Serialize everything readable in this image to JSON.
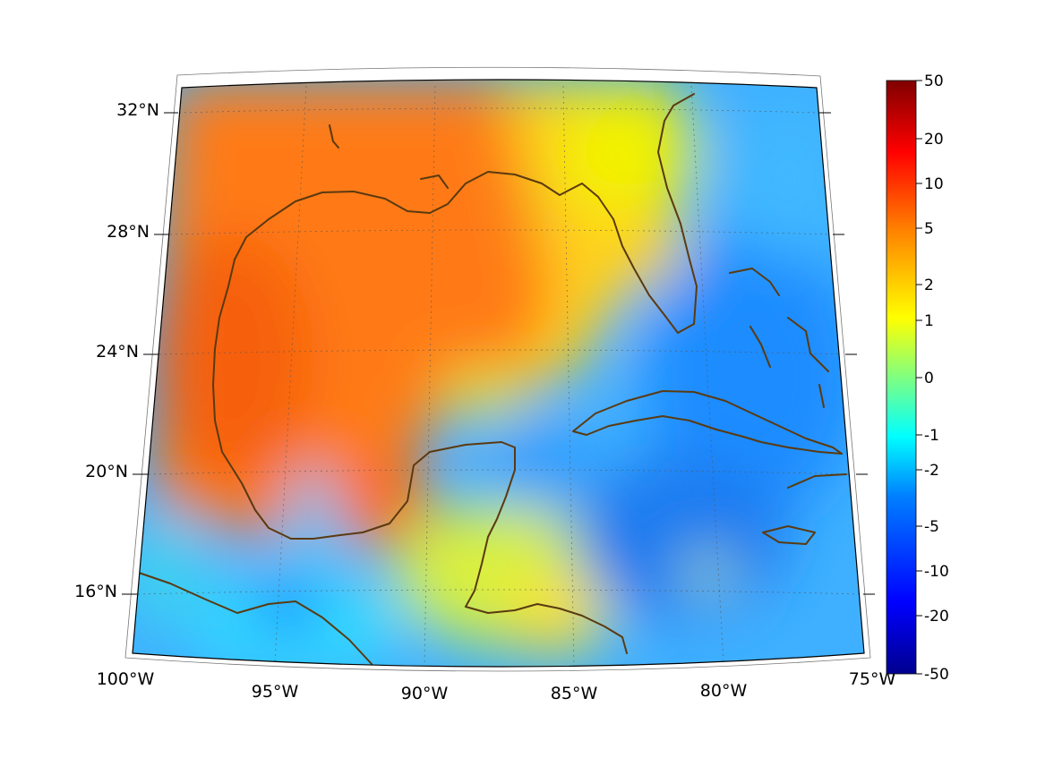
{
  "map": {
    "lon_labels": [
      "100°W",
      "95°W",
      "90°W",
      "85°W",
      "80°W",
      "75°W"
    ],
    "lat_labels": [
      "32°N",
      "28°N",
      "24°N",
      "20°N",
      "16°N"
    ]
  },
  "colorbar": {
    "tick_labels": [
      "50",
      "20",
      "10",
      "5",
      "2",
      "1",
      "0",
      "-1",
      "-2",
      "-5",
      "-10",
      "-20",
      "-50"
    ],
    "tick_values": [
      50,
      20,
      10,
      5,
      2,
      1,
      0,
      -1,
      -2,
      -5,
      -10,
      -20,
      -50
    ],
    "colormap": "jet",
    "colors": [
      "#00008f",
      "#0000ff",
      "#0080ff",
      "#00ffff",
      "#80ff80",
      "#ffff00",
      "#ff8000",
      "#ff0000",
      "#800000"
    ]
  },
  "colors": {
    "coastline": "#5a3a10",
    "frame": "#000000"
  }
}
